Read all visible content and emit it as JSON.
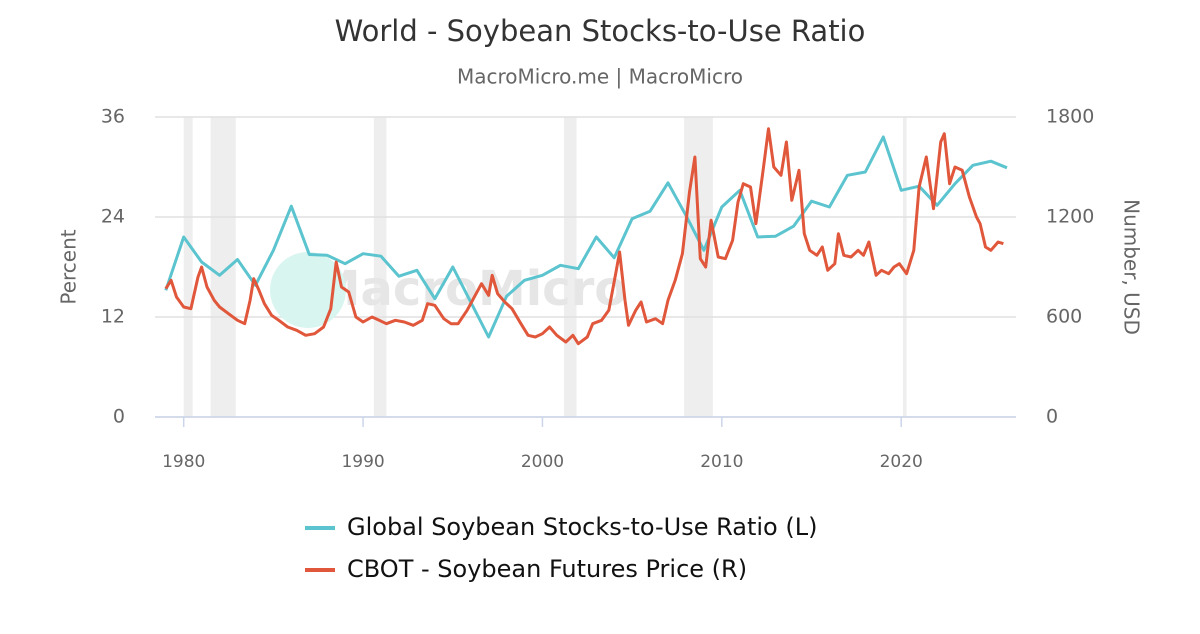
{
  "chart_data": {
    "type": "line",
    "title": "World - Soybean Stocks-to-Use Ratio",
    "subtitle": "MacroMicro.me | MacroMicro",
    "watermark": "MacroMicro",
    "y_label": "Percent",
    "y2_label": "Number, USD",
    "xlim": [
      1978.4,
      2026.4
    ],
    "xticks": [
      1980,
      1990,
      2000,
      2010,
      2020
    ],
    "ylim": [
      0,
      36
    ],
    "yticks": [
      0,
      12,
      24,
      36
    ],
    "y2lim": [
      0,
      1800
    ],
    "y2ticks": [
      0,
      600,
      1200,
      1800
    ],
    "grid": true,
    "legend": "bottom",
    "shaded_x_ranges": [
      [
        1980.0,
        1980.5
      ],
      [
        1981.5,
        1982.9
      ],
      [
        1990.6,
        1991.3
      ],
      [
        2001.2,
        2001.9
      ],
      [
        2007.9,
        2009.5
      ],
      [
        2020.1,
        2020.3
      ]
    ],
    "series": [
      {
        "name": "Global Soybean Stocks-to-Use Ratio (L)",
        "color": "#5bc4cf",
        "axis": "y",
        "x": [
          1979,
          1980,
          1981,
          1982,
          1983,
          1984,
          1985,
          1986,
          1987,
          1988,
          1989,
          1990,
          1991,
          1992,
          1993,
          1994,
          1995,
          1996,
          1997,
          1998,
          1999,
          2000,
          2001,
          2002,
          2003,
          2004,
          2005,
          2006,
          2007,
          2008,
          2009,
          2010,
          2011,
          2012,
          2013,
          2014,
          2015,
          2016,
          2017,
          2018,
          2019,
          2020,
          2021,
          2022,
          2023,
          2024,
          2025,
          2025.9
        ],
        "values": [
          15.2,
          21.6,
          18.6,
          17.0,
          18.9,
          15.8,
          20.0,
          25.3,
          19.5,
          19.4,
          18.4,
          19.6,
          19.3,
          16.9,
          17.6,
          14.2,
          18.0,
          13.8,
          9.6,
          14.5,
          16.4,
          17.0,
          18.2,
          17.8,
          21.6,
          19.1,
          23.8,
          24.7,
          28.1,
          24.2,
          20.0,
          25.2,
          27.2,
          21.6,
          21.7,
          22.9,
          25.9,
          25.2,
          29.0,
          29.4,
          33.6,
          27.2,
          27.7,
          25.4,
          28.0,
          30.2,
          30.7,
          29.9
        ]
      },
      {
        "name": "CBOT - Soybean Futures Price (R)",
        "color": "#e0573b",
        "axis": "y2",
        "x": [
          1979.0,
          1979.3,
          1979.6,
          1980.0,
          1980.4,
          1980.8,
          1981.0,
          1981.3,
          1981.7,
          1982.0,
          1982.5,
          1983.0,
          1983.4,
          1983.7,
          1983.9,
          1984.2,
          1984.5,
          1984.9,
          1985.3,
          1985.8,
          1986.3,
          1986.8,
          1987.3,
          1987.8,
          1988.2,
          1988.5,
          1988.8,
          1989.2,
          1989.6,
          1990.0,
          1990.5,
          1990.9,
          1991.3,
          1991.8,
          1992.3,
          1992.8,
          1993.3,
          1993.6,
          1994.0,
          1994.5,
          1994.9,
          1995.3,
          1995.8,
          1996.3,
          1996.6,
          1997.0,
          1997.2,
          1997.5,
          1997.9,
          1998.3,
          1998.8,
          1999.2,
          1999.6,
          2000.0,
          2000.4,
          2000.8,
          2001.3,
          2001.7,
          2002.0,
          2002.5,
          2002.8,
          2003.3,
          2003.7,
          2004.1,
          2004.3,
          2004.6,
          2004.8,
          2005.2,
          2005.5,
          2005.8,
          2006.3,
          2006.7,
          2007.0,
          2007.4,
          2007.8,
          2008.2,
          2008.5,
          2008.8,
          2009.1,
          2009.4,
          2009.8,
          2010.2,
          2010.6,
          2010.9,
          2011.2,
          2011.6,
          2011.9,
          2012.3,
          2012.6,
          2012.9,
          2013.3,
          2013.6,
          2013.9,
          2014.3,
          2014.6,
          2014.9,
          2015.3,
          2015.6,
          2015.9,
          2016.3,
          2016.5,
          2016.8,
          2017.2,
          2017.6,
          2017.9,
          2018.2,
          2018.6,
          2018.9,
          2019.3,
          2019.6,
          2019.9,
          2020.3,
          2020.7,
          2021.0,
          2021.4,
          2021.8,
          2022.2,
          2022.4,
          2022.7,
          2023.0,
          2023.4,
          2023.8,
          2024.2,
          2024.4,
          2024.7,
          2025.0,
          2025.4,
          2025.7
        ],
        "values": [
          770,
          820,
          720,
          660,
          650,
          840,
          900,
          780,
          700,
          660,
          620,
          580,
          560,
          700,
          830,
          760,
          680,
          610,
          580,
          540,
          520,
          490,
          500,
          540,
          650,
          930,
          780,
          750,
          600,
          570,
          600,
          580,
          560,
          580,
          570,
          550,
          580,
          680,
          670,
          590,
          560,
          560,
          640,
          740,
          800,
          730,
          850,
          740,
          690,
          650,
          560,
          490,
          480,
          500,
          540,
          490,
          450,
          490,
          440,
          480,
          560,
          580,
          640,
          870,
          990,
          700,
          550,
          640,
          690,
          570,
          590,
          560,
          700,
          820,
          980,
          1350,
          1560,
          950,
          900,
          1180,
          960,
          950,
          1060,
          1290,
          1400,
          1380,
          1160,
          1480,
          1730,
          1500,
          1450,
          1650,
          1300,
          1480,
          1100,
          1000,
          970,
          1020,
          880,
          920,
          1100,
          970,
          960,
          1000,
          970,
          1050,
          850,
          880,
          860,
          900,
          920,
          860,
          1000,
          1380,
          1560,
          1250,
          1650,
          1700,
          1400,
          1500,
          1480,
          1320,
          1200,
          1160,
          1020,
          1000,
          1050,
          1040
        ]
      }
    ]
  }
}
